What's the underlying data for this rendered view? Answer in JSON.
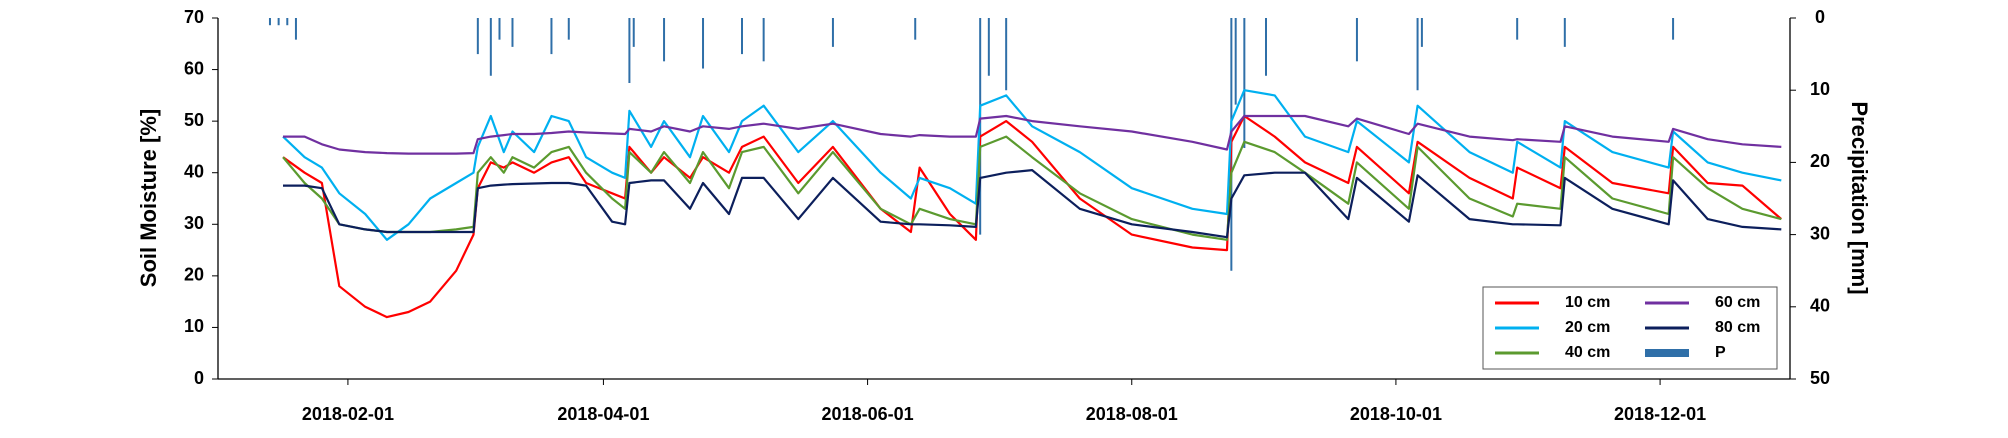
{
  "chart_data": {
    "type": "line",
    "y_label": "Soil Moisture [%]",
    "y2_label": "Precipitation [mm]",
    "xlim": [
      "2018-01-02",
      "2018-12-31"
    ],
    "xticks": [
      "2018-02-01",
      "2018-04-01",
      "2018-06-01",
      "2018-08-01",
      "2018-10-01",
      "2018-12-01"
    ],
    "ylim": [
      0,
      70
    ],
    "yticks": [
      0,
      10,
      20,
      30,
      40,
      50,
      60,
      70
    ],
    "y2lim": [
      50,
      0
    ],
    "y2ticks": [
      0,
      10,
      20,
      30,
      40,
      50
    ],
    "legend": "lower right",
    "x": [
      "2018-01-17",
      "2018-01-22",
      "2018-01-26",
      "2018-01-30",
      "2018-02-05",
      "2018-02-10",
      "2018-02-15",
      "2018-02-20",
      "2018-02-26",
      "2018-03-02",
      "2018-03-03",
      "2018-03-06",
      "2018-03-09",
      "2018-03-11",
      "2018-03-16",
      "2018-03-20",
      "2018-03-24",
      "2018-03-28",
      "2018-04-03",
      "2018-04-06",
      "2018-04-07",
      "2018-04-12",
      "2018-04-15",
      "2018-04-21",
      "2018-04-24",
      "2018-04-30",
      "2018-05-03",
      "2018-05-08",
      "2018-05-16",
      "2018-05-24",
      "2018-06-04",
      "2018-06-11",
      "2018-06-13",
      "2018-06-20",
      "2018-06-26",
      "2018-06-27",
      "2018-07-03",
      "2018-07-09",
      "2018-07-20",
      "2018-08-01",
      "2018-08-15",
      "2018-08-23",
      "2018-08-24",
      "2018-08-27",
      "2018-09-03",
      "2018-09-10",
      "2018-09-20",
      "2018-09-22",
      "2018-10-04",
      "2018-10-06",
      "2018-10-18",
      "2018-10-28",
      "2018-10-29",
      "2018-11-08",
      "2018-11-09",
      "2018-11-20",
      "2018-12-03",
      "2018-12-04",
      "2018-12-12",
      "2018-12-20",
      "2018-12-29"
    ],
    "series": [
      {
        "name": "10 cm",
        "color": "#ff0000",
        "values": [
          43,
          40,
          38,
          18,
          14,
          12,
          13,
          15,
          21,
          28,
          37,
          42,
          41,
          42,
          40,
          42,
          43,
          38,
          36,
          35,
          45,
          40,
          43,
          39,
          43,
          40,
          45,
          47,
          38,
          45,
          33,
          28.5,
          41,
          32,
          27,
          47,
          50,
          46,
          35,
          28,
          25.5,
          25,
          46,
          51,
          47,
          42,
          38,
          45,
          36,
          46,
          39,
          35,
          41,
          37,
          45,
          38,
          36,
          45,
          38,
          37.5,
          31
        ]
      },
      {
        "name": "20 cm",
        "color": "#00b0f0",
        "values": [
          47,
          43,
          41,
          36,
          32,
          27,
          30,
          35,
          38,
          40,
          45,
          51,
          44,
          48,
          44,
          51,
          50,
          43,
          40,
          39,
          52,
          45,
          50,
          43,
          51,
          44,
          50,
          53,
          44,
          50,
          40,
          35,
          39,
          37,
          34,
          53,
          55,
          49,
          44,
          37,
          33,
          32,
          50,
          56,
          55,
          47,
          44,
          50,
          42,
          53,
          44,
          40,
          46,
          41,
          50,
          44,
          41,
          48,
          42,
          40,
          38.5
        ]
      },
      {
        "name": "40 cm",
        "color": "#5b9a2f",
        "values": [
          43,
          38,
          35,
          30,
          29,
          28.5,
          28.5,
          28.5,
          29,
          29.5,
          40,
          43,
          40,
          43,
          41,
          44,
          45,
          40,
          35,
          33,
          44,
          40,
          44,
          38,
          44,
          37,
          44,
          45,
          36,
          44,
          33,
          30,
          33,
          31,
          30,
          45,
          47,
          43,
          36,
          31,
          28,
          27,
          40,
          46,
          44,
          40,
          34,
          42,
          33,
          45,
          35,
          31.5,
          34,
          33,
          43,
          35,
          32,
          43,
          37,
          33,
          31
        ]
      },
      {
        "name": "60 cm",
        "color": "#7030a0",
        "values": [
          47,
          47,
          45.5,
          44.5,
          44,
          43.8,
          43.7,
          43.7,
          43.7,
          43.8,
          46.5,
          47,
          47.3,
          47.5,
          47.5,
          47.7,
          48,
          47.8,
          47.6,
          47.5,
          48.5,
          48,
          49,
          48,
          49,
          48.5,
          49,
          49.5,
          48.5,
          49.5,
          47.5,
          47,
          47.3,
          47,
          47,
          50.5,
          51,
          50,
          49,
          48,
          46,
          44.5,
          48,
          51,
          51,
          51,
          49,
          50.5,
          47.5,
          49.5,
          47,
          46.3,
          46.5,
          46,
          49,
          47,
          46,
          48.5,
          46.5,
          45.5,
          45
        ]
      },
      {
        "name": "80 cm",
        "color": "#0c1f5c",
        "values": [
          37.5,
          37.5,
          37,
          30,
          29,
          28.5,
          28.5,
          28.5,
          28.5,
          28.5,
          37,
          37.5,
          37.7,
          37.8,
          37.9,
          38,
          38,
          37.5,
          30.5,
          30,
          38,
          38.5,
          38.5,
          33,
          38,
          32,
          39,
          39,
          31,
          39,
          30.5,
          30,
          30,
          29.8,
          29.5,
          39,
          40,
          40.5,
          33,
          30,
          28.5,
          27.5,
          35,
          39.5,
          40,
          40,
          31,
          39,
          30.5,
          39.5,
          31,
          30,
          30,
          29.8,
          39,
          33,
          30,
          38.5,
          31,
          29.5,
          29
        ]
      },
      {
        "name": "P",
        "color": "#2f6fa8",
        "axis": "y2",
        "x": [
          "2018-01-14",
          "2018-01-16",
          "2018-01-18",
          "2018-01-20",
          "2018-03-03",
          "2018-03-06",
          "2018-03-08",
          "2018-03-11",
          "2018-03-20",
          "2018-03-24",
          "2018-04-07",
          "2018-04-08",
          "2018-04-15",
          "2018-04-24",
          "2018-05-03",
          "2018-05-08",
          "2018-05-24",
          "2018-06-12",
          "2018-06-27",
          "2018-06-29",
          "2018-07-03",
          "2018-08-24",
          "2018-08-25",
          "2018-08-27",
          "2018-09-01",
          "2018-09-22",
          "2018-10-06",
          "2018-10-07",
          "2018-10-29",
          "2018-11-09",
          "2018-12-04"
        ],
        "values": [
          1,
          1,
          1,
          3,
          5,
          8,
          3,
          4,
          5,
          3,
          9,
          4,
          6,
          7,
          5,
          6,
          4,
          3,
          30,
          8,
          10,
          35,
          12,
          18,
          8,
          6,
          10,
          4,
          3,
          4,
          3
        ]
      }
    ]
  }
}
